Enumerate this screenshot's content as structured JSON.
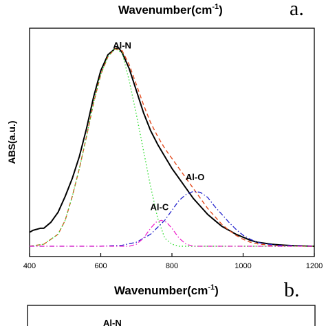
{
  "top_strip": {
    "xlabel_text": "Wavenumber(cm",
    "xlabel_sup": "-1",
    "xlabel_close": ")",
    "panel_letter": "a."
  },
  "panel_a": {
    "ylabel": "ABS(a.u.)",
    "xlabel_text": "Wavenumber(cm",
    "xlabel_sup": "-1",
    "xlabel_close": ")",
    "panel_letter": "b.",
    "annotations": [
      {
        "text": "Al-N",
        "x": 660,
        "y": 0.97
      },
      {
        "text": "Al-O",
        "x": 865,
        "y": 0.31
      },
      {
        "text": "Al-C",
        "x": 765,
        "y": 0.16
      }
    ]
  },
  "panel_b": {
    "partial_label": "Al-N"
  },
  "chart_data": {
    "type": "line",
    "xlabel": "Wavenumber(cm-1)",
    "ylabel": "ABS(a.u.)",
    "xlim": [
      400,
      1200
    ],
    "ylim": [
      0,
      1.08
    ],
    "x_ticks": [
      400,
      600,
      800,
      1000,
      1200
    ],
    "y_ticks": [],
    "grid": false,
    "series": [
      {
        "name": "",
        "color": "#000000",
        "dash": "solid",
        "width": 2,
        "x": [
          400,
          410,
          420,
          430,
          440,
          460,
          480,
          500,
          520,
          540,
          560,
          580,
          600,
          620,
          640,
          650,
          660,
          680,
          700,
          720,
          740,
          760,
          780,
          800,
          820,
          840,
          860,
          880,
          900,
          920,
          940,
          960,
          980,
          1000,
          1020,
          1040,
          1060,
          1080,
          1100,
          1120,
          1140,
          1160,
          1180,
          1200
        ],
        "y": [
          0.07,
          0.08,
          0.085,
          0.09,
          0.09,
          0.12,
          0.17,
          0.25,
          0.34,
          0.45,
          0.59,
          0.75,
          0.88,
          0.96,
          0.99,
          0.995,
          0.97,
          0.89,
          0.78,
          0.67,
          0.58,
          0.51,
          0.45,
          0.39,
          0.34,
          0.29,
          0.24,
          0.2,
          0.16,
          0.13,
          0.1,
          0.08,
          0.06,
          0.045,
          0.03,
          0.02,
          0.015,
          0.01,
          0.007,
          0.005,
          0.003,
          0.002,
          0.001,
          0.0
        ]
      },
      {
        "name": "",
        "color": "#e34a1e",
        "dash": "dashed",
        "width": 1.4,
        "x": [
          400,
          440,
          480,
          500,
          520,
          540,
          560,
          580,
          600,
          620,
          640,
          660,
          680,
          700,
          720,
          740,
          760,
          780,
          800,
          820,
          840,
          860,
          880,
          900,
          920,
          940,
          960,
          980,
          1000,
          1020,
          1040,
          1080,
          1120,
          1200
        ],
        "y": [
          0.0,
          0.01,
          0.06,
          0.13,
          0.25,
          0.39,
          0.55,
          0.72,
          0.86,
          0.95,
          0.99,
          0.98,
          0.91,
          0.81,
          0.71,
          0.62,
          0.55,
          0.49,
          0.44,
          0.39,
          0.34,
          0.29,
          0.24,
          0.19,
          0.15,
          0.11,
          0.08,
          0.055,
          0.035,
          0.02,
          0.012,
          0.004,
          0.001,
          0.0
        ]
      },
      {
        "name": "",
        "color": "#33dd33",
        "dash": "dotted",
        "width": 1.4,
        "x": [
          400,
          440,
          480,
          500,
          520,
          540,
          560,
          580,
          600,
          620,
          640,
          660,
          680,
          700,
          720,
          740,
          760,
          780,
          800,
          820,
          840,
          880,
          1200
        ],
        "y": [
          0.0,
          0.01,
          0.06,
          0.13,
          0.25,
          0.39,
          0.55,
          0.72,
          0.86,
          0.95,
          0.99,
          0.97,
          0.83,
          0.66,
          0.48,
          0.3,
          0.14,
          0.04,
          0.01,
          0.0,
          0.0,
          0.0,
          0.0
        ]
      },
      {
        "name": "",
        "color": "#2222cc",
        "dash": "dashdot",
        "width": 1.3,
        "x": [
          400,
          600,
          660,
          700,
          740,
          780,
          800,
          820,
          840,
          860,
          880,
          900,
          920,
          940,
          960,
          980,
          1000,
          1020,
          1040,
          1060,
          1100,
          1200
        ],
        "y": [
          0.0,
          0.0,
          0.005,
          0.02,
          0.06,
          0.13,
          0.18,
          0.23,
          0.26,
          0.275,
          0.27,
          0.245,
          0.2,
          0.16,
          0.12,
          0.085,
          0.055,
          0.035,
          0.02,
          0.012,
          0.004,
          0.0
        ]
      },
      {
        "name": "",
        "color": "#ee22cc",
        "dash": "dashdot",
        "width": 1.3,
        "x": [
          400,
          680,
          700,
          720,
          740,
          755,
          770,
          785,
          800,
          820,
          840,
          860,
          1200
        ],
        "y": [
          0.0,
          0.0,
          0.01,
          0.04,
          0.09,
          0.12,
          0.13,
          0.12,
          0.09,
          0.04,
          0.01,
          0.0,
          0.0
        ]
      }
    ]
  }
}
